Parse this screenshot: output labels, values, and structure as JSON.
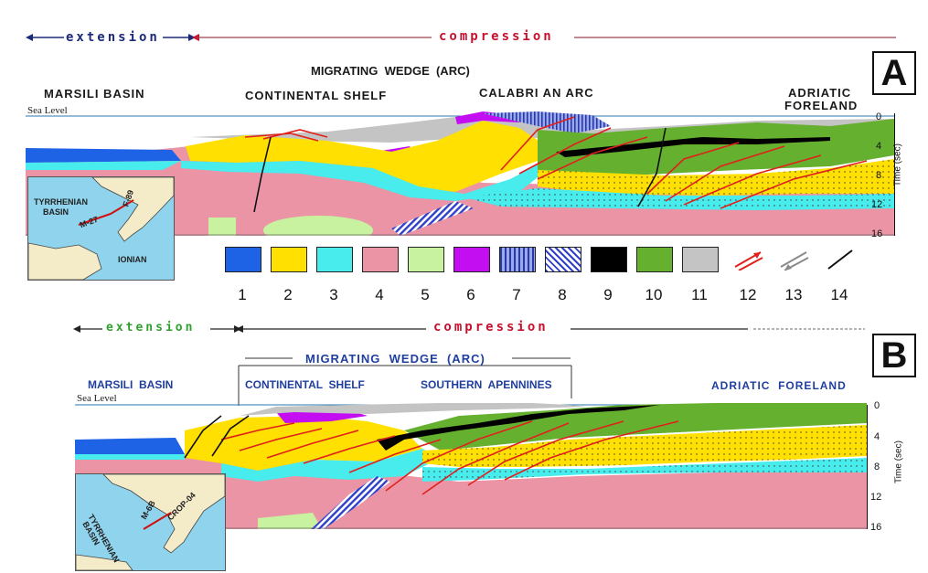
{
  "panel_a": {
    "label": "A",
    "extension": "extension",
    "compression": "compression",
    "wedge_title": "MIGRATING  WEDGE  (ARC)",
    "regions": {
      "marsili": "MARSILI BASIN",
      "shelf": "CONTINENTAL SHELF",
      "arc": "CALABRI AN ARC",
      "foreland_1": "ADRIATIC",
      "foreland_2": "FORELAND"
    },
    "sea_level": "Sea Level",
    "time_ticks": [
      "0",
      "4",
      "8",
      "12",
      "16"
    ],
    "time_axis": "Time (sec)",
    "inset": {
      "basin_1": "TYRRHENIAN",
      "basin_2": "BASIN",
      "sea": "IONIAN",
      "line_1": "M-27",
      "line_2": "F-89"
    }
  },
  "legend": {
    "items": [
      {
        "num": "1",
        "color": "#1e62e6"
      },
      {
        "num": "2",
        "color": "#ffe000"
      },
      {
        "num": "3",
        "color": "#48ecec"
      },
      {
        "num": "4",
        "color": "#ea94a6"
      },
      {
        "num": "5",
        "color": "#c8f2a0"
      },
      {
        "num": "6",
        "color": "#c40ef2"
      },
      {
        "num": "7",
        "color": "#9aa8f0"
      },
      {
        "num": "8",
        "color": "#3040c8"
      },
      {
        "num": "9",
        "color": "#000000"
      },
      {
        "num": "10",
        "color": "#66b030"
      },
      {
        "num": "11",
        "color": "#c4c4c4"
      },
      {
        "num": "12",
        "color": "#e0201c"
      },
      {
        "num": "13",
        "color": "#8a8a8a"
      },
      {
        "num": "14",
        "color": "#111111"
      }
    ]
  },
  "panel_b": {
    "label": "B",
    "extension": "extension",
    "compression": "compression",
    "wedge_title": "MIGRATING  WEDGE  (ARC)",
    "regions": {
      "marsili": "MARSILI  BASIN",
      "shelf": "CONTINENTAL  SHELF",
      "apennines": "SOUTHERN  APENNINES",
      "foreland": "ADRIATIC  FORELAND"
    },
    "sea_level": "Sea Level",
    "time_ticks": [
      "0",
      "4",
      "8",
      "12",
      "16"
    ],
    "time_axis": "Time (sec)",
    "inset": {
      "basin_1": "TYRRHENIAN",
      "basin_2": "BASIN",
      "line_1": "M-6B",
      "line_2": "CROP-04"
    }
  }
}
